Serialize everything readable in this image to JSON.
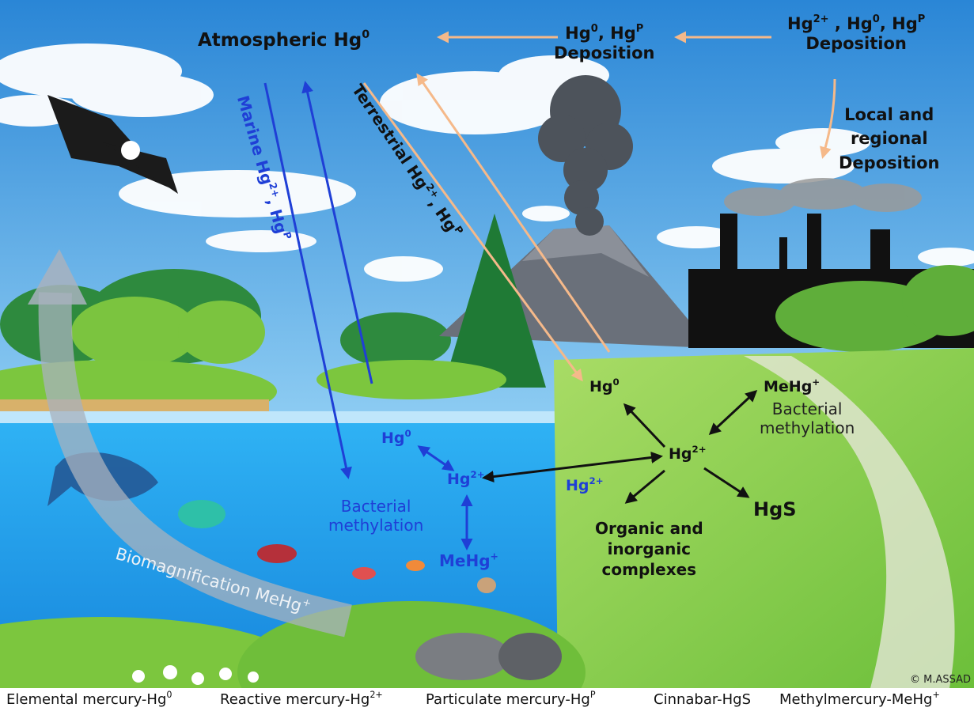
{
  "labels": [
    [
      [
        "Atmospheric Hg",
        {
          "sup": "0"
        }
      ]
    ],
    [
      [
        "Hg",
        {
          "sup": "0"
        },
        ", Hg",
        {
          "sup": "P"
        }
      ],
      [
        "Deposition"
      ]
    ],
    [
      [
        "Hg",
        {
          "sup": "2+"
        },
        " , Hg",
        {
          "sup": "0"
        },
        ", Hg",
        {
          "sup": "P"
        }
      ],
      [
        "Deposition"
      ]
    ],
    [
      [
        "Local and"
      ],
      [
        "regional"
      ],
      [
        "Deposition"
      ]
    ],
    [
      [
        "Marine Hg",
        {
          "sup": "2+"
        },
        ", Hg",
        {
          "sup": "P"
        }
      ]
    ],
    [
      [
        "Terrestrial Hg",
        {
          "sup": "2+"
        },
        ", Hg",
        {
          "sup": "P"
        }
      ]
    ],
    [
      [
        "Hg",
        {
          "sup": "0"
        }
      ]
    ],
    [
      [
        "Hg",
        {
          "sup": "2+"
        }
      ]
    ],
    [
      [
        "Hg",
        {
          "sup": "2+"
        }
      ]
    ],
    [
      [
        "Bacterial"
      ],
      [
        "methylation"
      ]
    ],
    [
      [
        "MeHg",
        {
          "sup": "+"
        }
      ]
    ],
    [
      [
        "Hg",
        {
          "sup": "0"
        }
      ]
    ],
    [
      [
        "MeHg",
        {
          "sup": "+"
        }
      ]
    ],
    [
      [
        "Bacterial"
      ],
      [
        "methylation"
      ]
    ],
    [
      [
        "Hg",
        {
          "sup": "2+"
        }
      ]
    ],
    [
      [
        "HgS"
      ]
    ],
    [
      [
        "Organic and"
      ],
      [
        "inorganic"
      ],
      [
        "complexes"
      ]
    ],
    [
      [
        "Biomagnification MeHg",
        {
          "sup": "+"
        }
      ]
    ],
    [
      [
        "© M.ASSAD"
      ]
    ]
  ],
  "legend": [
    [
      [
        "Elemental mercury-Hg",
        {
          "sup": "0"
        }
      ]
    ],
    [
      [
        "Reactive mercury-Hg",
        {
          "sup": "2+"
        }
      ]
    ],
    [
      [
        "Particulate mercury-Hg",
        {
          "sup": "P"
        }
      ]
    ],
    [
      [
        "Cinnabar-HgS"
      ]
    ],
    [
      [
        "Methylmercury-MeHg",
        {
          "sup": "+"
        }
      ]
    ]
  ]
}
